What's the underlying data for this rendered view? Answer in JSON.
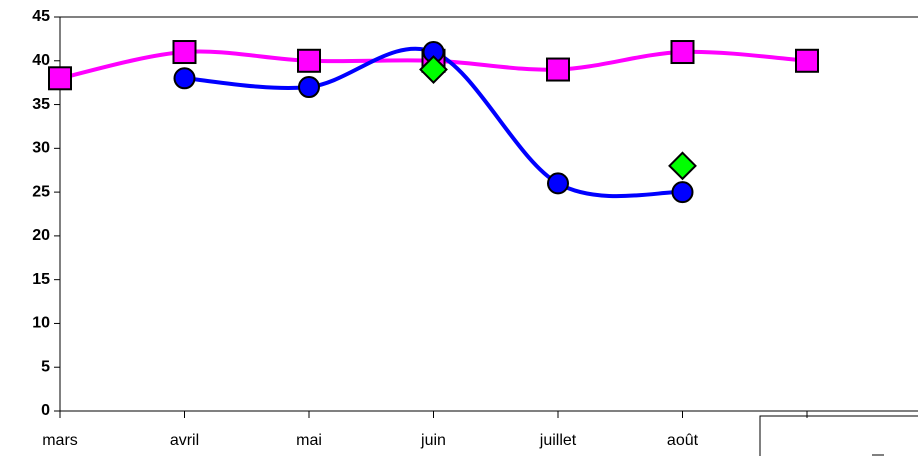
{
  "chart_data": {
    "type": "line",
    "categories": [
      "mars",
      "avril",
      "mai",
      "juin",
      "juillet",
      "août",
      null
    ],
    "series": [
      {
        "color": "#ff00ff",
        "marker": "square",
        "smooth": true,
        "values": [
          38,
          41,
          40,
          40,
          39,
          41,
          40
        ]
      },
      {
        "color": "#0000ff",
        "marker": "circle",
        "smooth": true,
        "values": [
          null,
          38,
          37,
          41,
          26,
          25,
          null
        ]
      },
      {
        "color": "#00ff00",
        "marker": "diamond",
        "smooth": false,
        "values": [
          null,
          null,
          null,
          39,
          null,
          28,
          null
        ]
      }
    ],
    "ylim": [
      0,
      45
    ],
    "yticks": [
      0,
      5,
      10,
      15,
      20,
      25,
      30,
      35,
      40,
      45
    ],
    "grid": false
  }
}
